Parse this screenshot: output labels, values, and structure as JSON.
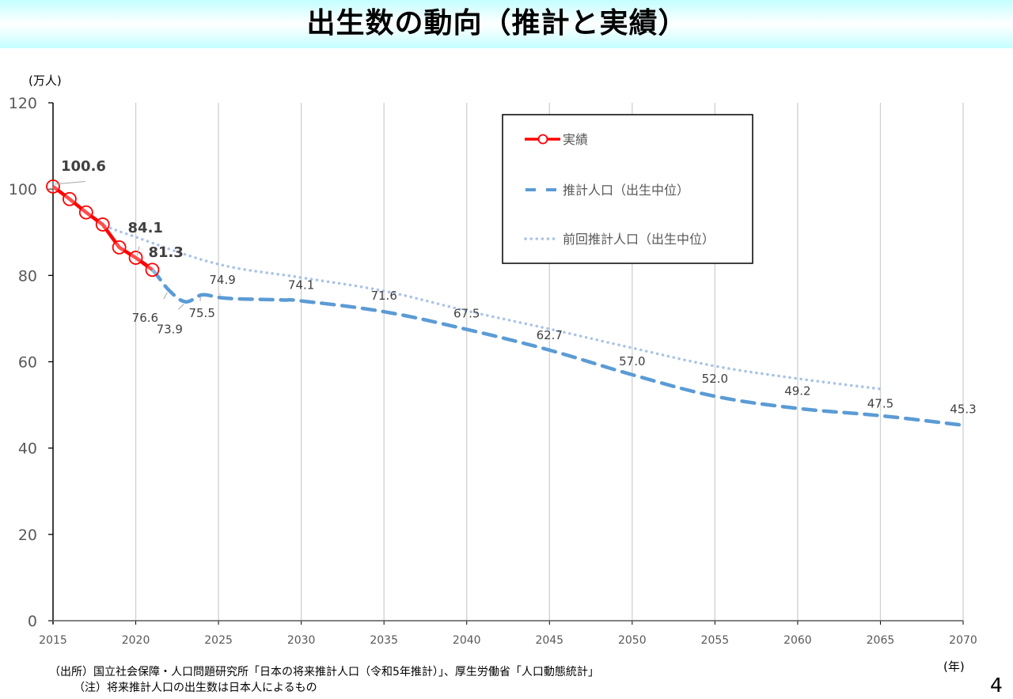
{
  "header": {
    "title": "出生数の動向（推計と実績）"
  },
  "footer": {
    "source": "（出所）国立社会保障・人口問題研究所「日本の将来推計人口（令和5年推計）」、厚生労働省「人口動態統計」",
    "note": "（注）将来推計人口の出生数は日本人によるもの",
    "page_number": "4"
  },
  "colors": {
    "actual": "#ff0000",
    "projection": "#5b9bd5",
    "previous": "#a9c2e8",
    "grid": "#d0d0d0",
    "axis": "#000000"
  },
  "chart_data": {
    "type": "line",
    "title": "出生数の動向（推計と実績）",
    "ylabel": "(万人)",
    "xlabel": "(年)",
    "ylim": [
      0,
      120
    ],
    "xlim": [
      2015,
      2070
    ],
    "yticks": [
      0,
      20,
      40,
      60,
      80,
      100,
      120
    ],
    "xticks": [
      2015,
      2020,
      2025,
      2030,
      2035,
      2040,
      2045,
      2050,
      2055,
      2060,
      2065,
      2070
    ],
    "grid": "vertical",
    "legend_position": "top-right",
    "series": [
      {
        "name": "実績",
        "style": "solid-marker",
        "x": [
          2015,
          2016,
          2017,
          2018,
          2019,
          2020,
          2021
        ],
        "values": [
          100.6,
          97.7,
          94.6,
          91.8,
          86.5,
          84.1,
          81.3
        ]
      },
      {
        "name": "推計人口（出生中位）",
        "style": "dashed",
        "x": [
          2020,
          2021,
          2022,
          2023,
          2024,
          2025,
          2026,
          2027,
          2028,
          2029,
          2030,
          2035,
          2040,
          2045,
          2050,
          2055,
          2060,
          2065,
          2070
        ],
        "values": [
          84.1,
          81.3,
          76.6,
          73.9,
          75.5,
          74.9,
          74.6,
          74.5,
          74.4,
          74.3,
          74.1,
          71.6,
          67.5,
          62.7,
          57.0,
          52.0,
          49.2,
          47.5,
          45.3
        ]
      },
      {
        "name": "前回推計人口（出生中位）",
        "style": "dotted",
        "x": [
          2016,
          2017,
          2018,
          2020,
          2025,
          2030,
          2035,
          2040,
          2045,
          2050,
          2055,
          2060,
          2065
        ],
        "values": [
          97.7,
          94.6,
          91.8,
          88.9,
          82.6,
          79.5,
          76.4,
          71.8,
          67.6,
          63.2,
          59.0,
          56.1,
          53.7
        ]
      }
    ],
    "annotations": [
      {
        "text": "100.6",
        "x": 2015,
        "y": 100.6,
        "series": "実績",
        "bold": true
      },
      {
        "text": "84.1",
        "x": 2020,
        "y": 84.1,
        "series": "実績",
        "bold": true
      },
      {
        "text": "81.3",
        "x": 2021,
        "y": 81.3,
        "series": "実績",
        "bold": true
      },
      {
        "text": "76.6",
        "x": 2022,
        "y": 76.6,
        "series": "推計人口（出生中位）"
      },
      {
        "text": "73.9",
        "x": 2023,
        "y": 73.9,
        "series": "推計人口（出生中位）"
      },
      {
        "text": "75.5",
        "x": 2024,
        "y": 75.5,
        "series": "推計人口（出生中位）"
      },
      {
        "text": "74.9",
        "x": 2025,
        "y": 74.9,
        "series": "推計人口（出生中位）"
      },
      {
        "text": "74.1",
        "x": 2030,
        "y": 74.1,
        "series": "推計人口（出生中位）"
      },
      {
        "text": "71.6",
        "x": 2035,
        "y": 71.6,
        "series": "推計人口（出生中位）"
      },
      {
        "text": "67.5",
        "x": 2040,
        "y": 67.5,
        "series": "推計人口（出生中位）"
      },
      {
        "text": "62.7",
        "x": 2045,
        "y": 62.7,
        "series": "推計人口（出生中位）"
      },
      {
        "text": "57.0",
        "x": 2050,
        "y": 57.0,
        "series": "推計人口（出生中位）"
      },
      {
        "text": "52.0",
        "x": 2055,
        "y": 52.0,
        "series": "推計人口（出生中位）"
      },
      {
        "text": "49.2",
        "x": 2060,
        "y": 49.2,
        "series": "推計人口（出生中位）"
      },
      {
        "text": "47.5",
        "x": 2065,
        "y": 47.5,
        "series": "推計人口（出生中位）"
      },
      {
        "text": "45.3",
        "x": 2070,
        "y": 45.3,
        "series": "推計人口（出生中位）"
      }
    ]
  }
}
